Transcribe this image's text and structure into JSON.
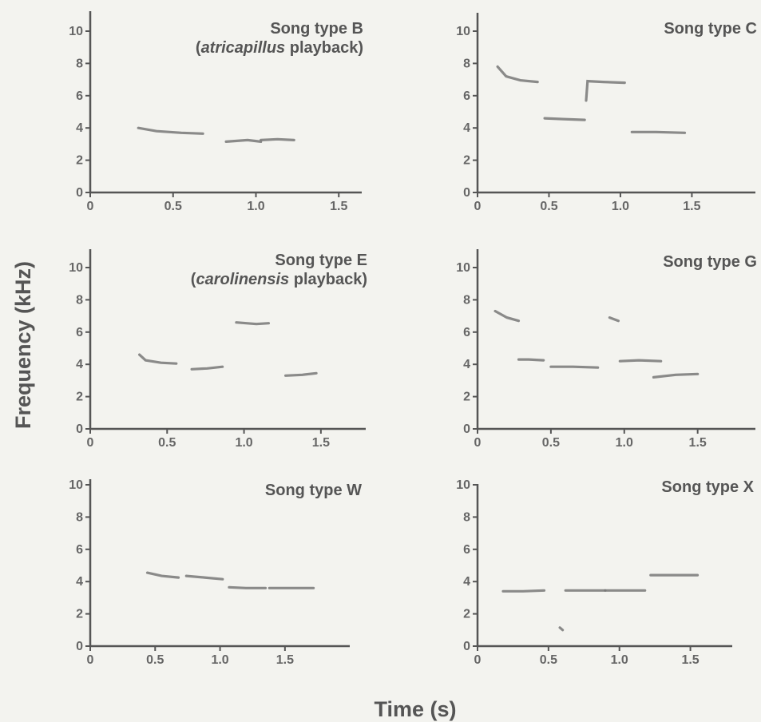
{
  "ylabel": "Frequency (kHz)",
  "xlabel": "Time (s)",
  "chart_data": [
    {
      "type": "line",
      "title_lines": [
        [
          {
            "text": "Song type B",
            "italic": false
          }
        ],
        [
          {
            "text": "(",
            "italic": false
          },
          {
            "text": "atricapillus",
            "italic": true
          },
          {
            "text": " playback)",
            "italic": false
          }
        ]
      ],
      "ylim": [
        0,
        11
      ],
      "yticks": [
        0,
        2,
        4,
        6,
        8,
        10
      ],
      "xlim": [
        0,
        1.6
      ],
      "xticks": [
        0,
        0.5,
        1.0,
        1.5
      ],
      "xtick_labels": [
        "0",
        "0.5",
        "1.0",
        "1.5"
      ],
      "notes": [
        [
          [
            0.29,
            4.0
          ],
          [
            0.4,
            3.8
          ],
          [
            0.55,
            3.7
          ],
          [
            0.68,
            3.65
          ]
        ],
        [
          [
            0.82,
            3.15
          ],
          [
            0.95,
            3.25
          ],
          [
            1.03,
            3.15
          ]
        ],
        [
          [
            1.03,
            3.25
          ],
          [
            1.13,
            3.3
          ],
          [
            1.23,
            3.25
          ]
        ]
      ]
    },
    {
      "type": "line",
      "title_lines": [
        [
          {
            "text": "Song type C",
            "italic": false
          }
        ]
      ],
      "ylim": [
        0,
        11
      ],
      "yticks": [
        0,
        2,
        4,
        6,
        8,
        10
      ],
      "xlim": [
        0,
        1.9
      ],
      "xticks": [
        0,
        0.5,
        1.0,
        1.5
      ],
      "xtick_labels": [
        "0",
        "0.5",
        "1.0",
        "1.5"
      ],
      "notes": [
        [
          [
            0.14,
            7.8
          ],
          [
            0.2,
            7.2
          ],
          [
            0.3,
            6.95
          ],
          [
            0.42,
            6.85
          ]
        ],
        [
          [
            0.47,
            4.6
          ],
          [
            0.6,
            4.55
          ],
          [
            0.75,
            4.5
          ]
        ],
        [
          [
            0.76,
            5.7
          ],
          [
            0.77,
            6.9
          ],
          [
            0.88,
            6.85
          ],
          [
            1.03,
            6.8
          ]
        ],
        [
          [
            1.08,
            3.75
          ],
          [
            1.25,
            3.75
          ],
          [
            1.45,
            3.7
          ]
        ]
      ]
    },
    {
      "type": "line",
      "title_lines": [
        [
          {
            "text": "Song type E",
            "italic": false
          }
        ],
        [
          {
            "text": "(",
            "italic": false
          },
          {
            "text": "carolinensis",
            "italic": true
          },
          {
            "text": " playback)",
            "italic": false
          }
        ]
      ],
      "ylim": [
        0,
        11
      ],
      "yticks": [
        0,
        2,
        4,
        6,
        8,
        10
      ],
      "xlim": [
        0,
        1.75
      ],
      "xticks": [
        0,
        0.5,
        1.0,
        1.5
      ],
      "xtick_labels": [
        "0",
        "0.5",
        "1.0",
        "1.5"
      ],
      "notes": [
        [
          [
            0.32,
            4.6
          ],
          [
            0.36,
            4.25
          ],
          [
            0.46,
            4.1
          ],
          [
            0.56,
            4.05
          ]
        ],
        [
          [
            0.66,
            3.7
          ],
          [
            0.76,
            3.75
          ],
          [
            0.86,
            3.85
          ]
        ],
        [
          [
            0.95,
            6.6
          ],
          [
            1.08,
            6.5
          ],
          [
            1.16,
            6.55
          ]
        ],
        [
          [
            1.27,
            3.3
          ],
          [
            1.38,
            3.35
          ],
          [
            1.47,
            3.45
          ]
        ]
      ]
    },
    {
      "type": "line",
      "title_lines": [
        [
          {
            "text": "Song type G",
            "italic": false
          }
        ]
      ],
      "ylim": [
        0,
        11
      ],
      "yticks": [
        0,
        2,
        4,
        6,
        8,
        10
      ],
      "xlim": [
        0,
        1.85
      ],
      "xticks": [
        0,
        0.5,
        1.0,
        1.5
      ],
      "xtick_labels": [
        "0",
        "0.5",
        "1.0",
        "1.5"
      ],
      "notes": [
        [
          [
            0.12,
            7.3
          ],
          [
            0.2,
            6.9
          ],
          [
            0.28,
            6.7
          ]
        ],
        [
          [
            0.28,
            4.3
          ],
          [
            0.35,
            4.3
          ],
          [
            0.45,
            4.25
          ]
        ],
        [
          [
            0.5,
            3.85
          ],
          [
            0.65,
            3.85
          ],
          [
            0.82,
            3.8
          ]
        ],
        [
          [
            0.9,
            6.9
          ],
          [
            0.96,
            6.7
          ]
        ],
        [
          [
            0.97,
            4.2
          ],
          [
            1.1,
            4.25
          ],
          [
            1.25,
            4.2
          ]
        ],
        [
          [
            1.2,
            3.2
          ],
          [
            1.35,
            3.35
          ],
          [
            1.5,
            3.4
          ]
        ]
      ]
    },
    {
      "type": "line",
      "title_lines": [
        [
          {
            "text": "Song type W",
            "italic": false
          }
        ]
      ],
      "ylim": [
        0,
        11
      ],
      "yticks": [
        0,
        2,
        4,
        6,
        8,
        10
      ],
      "xlim": [
        0,
        1.95
      ],
      "xticks": [
        0,
        0.5,
        1.0,
        1.5
      ],
      "xtick_labels": [
        "0",
        "0.5",
        "1.0",
        "1.5"
      ],
      "notes": [
        [
          [
            0.44,
            4.55
          ],
          [
            0.55,
            4.35
          ],
          [
            0.68,
            4.25
          ]
        ],
        [
          [
            0.74,
            4.35
          ],
          [
            0.88,
            4.25
          ],
          [
            1.02,
            4.15
          ]
        ],
        [
          [
            1.07,
            3.65
          ],
          [
            1.2,
            3.6
          ],
          [
            1.35,
            3.6
          ]
        ],
        [
          [
            1.38,
            3.6
          ],
          [
            1.55,
            3.6
          ],
          [
            1.72,
            3.6
          ]
        ]
      ]
    },
    {
      "type": "line",
      "title_lines": [
        [
          {
            "text": "Song type  X",
            "italic": false
          }
        ]
      ],
      "ylim": [
        0,
        11
      ],
      "yticks": [
        0,
        2,
        4,
        6,
        8,
        10
      ],
      "xlim": [
        0,
        1.75
      ],
      "xticks": [
        0,
        0.5,
        1.0,
        1.5
      ],
      "xtick_labels": [
        "0",
        "0.5",
        "1.0",
        "1.5"
      ],
      "notes": [
        [
          [
            0.18,
            3.4
          ],
          [
            0.32,
            3.4
          ],
          [
            0.47,
            3.45
          ]
        ],
        [
          [
            0.58,
            1.15
          ],
          [
            0.6,
            1.0
          ]
        ],
        [
          [
            0.62,
            3.45
          ],
          [
            0.75,
            3.45
          ],
          [
            0.9,
            3.45
          ]
        ],
        [
          [
            0.9,
            3.45
          ],
          [
            1.05,
            3.45
          ],
          [
            1.18,
            3.45
          ]
        ],
        [
          [
            1.22,
            4.4
          ],
          [
            1.38,
            4.4
          ],
          [
            1.55,
            4.4
          ]
        ]
      ]
    }
  ]
}
